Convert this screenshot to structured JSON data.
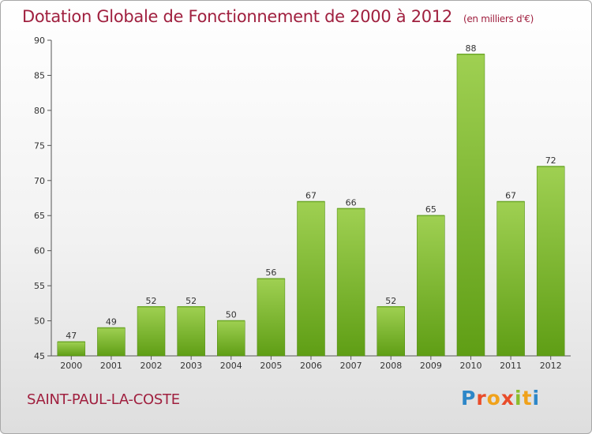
{
  "header": {
    "title": "Dotation Globale de Fonctionnement de 2000 à 2012",
    "subtitle": "(en milliers d'€)"
  },
  "footer": {
    "commune": "SAINT-PAUL-LA-COSTE",
    "logo_text": "Proxiti"
  },
  "colors": {
    "bar_light": "#9fd052",
    "bar_dark": "#5f9e15",
    "title": "#a0203f"
  },
  "chart_data": {
    "type": "bar",
    "title": "Dotation Globale de Fonctionnement de 2000 à 2012",
    "subtitle": "(en milliers d'€)",
    "xlabel": "",
    "ylabel": "",
    "categories": [
      "2000",
      "2001",
      "2002",
      "2003",
      "2004",
      "2005",
      "2006",
      "2007",
      "2008",
      "2009",
      "2010",
      "2011",
      "2012"
    ],
    "values": [
      47,
      49,
      52,
      52,
      50,
      56,
      67,
      66,
      52,
      65,
      88,
      67,
      72
    ],
    "ylim": [
      45,
      90
    ],
    "yticks": [
      45,
      50,
      55,
      60,
      65,
      70,
      75,
      80,
      85,
      90
    ],
    "grid": false,
    "legend": "none"
  }
}
